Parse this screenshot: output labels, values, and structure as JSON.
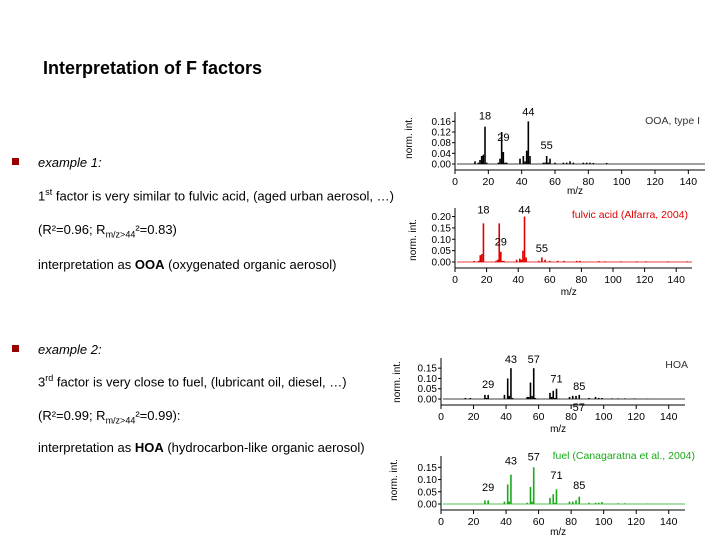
{
  "title": "Interpretation of F factors",
  "ex1": {
    "label": "example 1:",
    "line1_a": "1",
    "line1_sup": "st",
    "line1_b": " factor is very similar to fulvic acid, (aged urban aerosol, …)",
    "line2_a": "(R²=0.96; R",
    "line2_sub": "m/z>44",
    "line2_b": "²=0.83)",
    "line3_a": "interpretation as ",
    "line3_bold": "OOA",
    "line3_b": " (oxygenated organic aerosol)"
  },
  "ex2": {
    "label": "example 2:",
    "line1_a": "3",
    "line1_sup": "rd",
    "line1_b": " factor is very close to fuel, (lubricant oil, diesel, …)",
    "line2_a": "(R²=0.99; R",
    "line2_sub": "m/z>44",
    "line2_b": "²=0.99):",
    "line3_a": "interpretation as ",
    "line3_bold": "HOA",
    "line3_b": " (hydrocarbon-like organic aerosol)"
  },
  "chart_data": [
    {
      "type": "bar",
      "legend": "OOA, type I",
      "color": "#000000",
      "ylabel": "norm. int.",
      "xlabel": "m/z",
      "xlim": [
        0,
        150
      ],
      "ylim": [
        0,
        0.18
      ],
      "xticks": [
        0,
        20,
        40,
        60,
        80,
        100,
        120,
        140
      ],
      "yticks": [
        "0.00",
        "0.04",
        "0.08",
        "0.12",
        "0.16"
      ],
      "ytick_values": [
        0,
        0.04,
        0.08,
        0.12,
        0.16
      ],
      "peak_labels": [
        {
          "mz": 18,
          "text": "18",
          "y": 0.155
        },
        {
          "mz": 44,
          "text": "44",
          "y": 0.17
        },
        {
          "mz": 29,
          "text": "29",
          "y": 0.075
        },
        {
          "mz": 55,
          "text": "55",
          "y": 0.045
        }
      ],
      "points": [
        [
          12,
          0.01
        ],
        [
          14,
          0.005
        ],
        [
          15,
          0.015
        ],
        [
          16,
          0.03
        ],
        [
          17,
          0.035
        ],
        [
          18,
          0.14
        ],
        [
          19,
          0.005
        ],
        [
          26,
          0.005
        ],
        [
          27,
          0.02
        ],
        [
          28,
          0.12
        ],
        [
          29,
          0.045
        ],
        [
          30,
          0.005
        ],
        [
          31,
          0.005
        ],
        [
          39,
          0.02
        ],
        [
          41,
          0.03
        ],
        [
          42,
          0.01
        ],
        [
          43,
          0.05
        ],
        [
          44,
          0.16
        ],
        [
          45,
          0.03
        ],
        [
          53,
          0.005
        ],
        [
          54,
          0.005
        ],
        [
          55,
          0.03
        ],
        [
          56,
          0.005
        ],
        [
          57,
          0.02
        ],
        [
          60,
          0.005
        ],
        [
          65,
          0.005
        ],
        [
          67,
          0.005
        ],
        [
          69,
          0.01
        ],
        [
          71,
          0.005
        ],
        [
          77,
          0.005
        ],
        [
          79,
          0.005
        ],
        [
          81,
          0.005
        ],
        [
          83,
          0.004
        ],
        [
          91,
          0.004
        ]
      ]
    },
    {
      "type": "bar",
      "legend": "fulvic acid (Alfarra, 2004)",
      "color": "#e00000",
      "ylabel": "norm. int.",
      "xlabel": "m/z",
      "xlim": [
        0,
        150
      ],
      "ylim": [
        0,
        0.22
      ],
      "xticks": [
        0,
        20,
        40,
        60,
        80,
        100,
        120,
        140
      ],
      "yticks": [
        "0.00",
        "0.05",
        "0.10",
        "0.15",
        "0.20"
      ],
      "ytick_values": [
        0,
        0.05,
        0.1,
        0.15,
        0.2
      ],
      "peak_labels": [
        {
          "mz": 18,
          "text": "18",
          "y": 0.2
        },
        {
          "mz": 44,
          "text": "44",
          "y": 0.2
        },
        {
          "mz": 29,
          "text": "29",
          "y": 0.06
        },
        {
          "mz": 55,
          "text": "55",
          "y": 0.03
        }
      ],
      "points": [
        [
          12,
          0.005
        ],
        [
          15,
          0.005
        ],
        [
          16,
          0.03
        ],
        [
          17,
          0.035
        ],
        [
          18,
          0.17
        ],
        [
          26,
          0.005
        ],
        [
          27,
          0.01
        ],
        [
          28,
          0.17
        ],
        [
          29,
          0.045
        ],
        [
          30,
          0.005
        ],
        [
          31,
          0.005
        ],
        [
          39,
          0.01
        ],
        [
          41,
          0.015
        ],
        [
          42,
          0.01
        ],
        [
          43,
          0.05
        ],
        [
          44,
          0.2
        ],
        [
          45,
          0.02
        ],
        [
          53,
          0.005
        ],
        [
          55,
          0.02
        ],
        [
          57,
          0.01
        ],
        [
          60,
          0.005
        ],
        [
          65,
          0.005
        ],
        [
          69,
          0.005
        ],
        [
          77,
          0.005
        ],
        [
          79,
          0.005
        ],
        [
          91,
          0.004
        ],
        [
          95,
          0.003
        ],
        [
          105,
          0.003
        ],
        [
          115,
          0.003
        ],
        [
          121,
          0.003
        ],
        [
          135,
          0.003
        ],
        [
          147,
          0.003
        ]
      ]
    },
    {
      "type": "bar",
      "legend": "HOA",
      "color": "#000000",
      "ylabel": "norm. int.",
      "xlabel": "m/z",
      "xlim": [
        0,
        150
      ],
      "ylim": [
        0,
        0.18
      ],
      "xticks": [
        0,
        20,
        40,
        60,
        80,
        100,
        120,
        140
      ],
      "xtick_labels": [
        "0",
        "20",
        "40",
        "60",
        "80",
        "100",
        "120",
        "140"
      ],
      "yticks": [
        "0.00",
        "0.05",
        "0.10",
        "0.15"
      ],
      "ytick_values": [
        0,
        0.05,
        0.1,
        0.15
      ],
      "peak_labels": [
        {
          "mz": 43,
          "text": "43",
          "y": 0.16
        },
        {
          "mz": 57,
          "text": "57",
          "y": 0.16
        },
        {
          "mz": 29,
          "text": "29",
          "y": 0.04
        },
        {
          "mz": 71,
          "text": "71",
          "y": 0.065
        },
        {
          "mz": 85,
          "text": "85",
          "y": 0.03
        },
        {
          "mz": 57,
          "text": "57",
          "y": -0.005,
          "offset": 45
        }
      ],
      "points": [
        [
          15,
          0.005
        ],
        [
          18,
          0.005
        ],
        [
          27,
          0.02
        ],
        [
          28,
          0.005
        ],
        [
          29,
          0.02
        ],
        [
          39,
          0.02
        ],
        [
          41,
          0.1
        ],
        [
          42,
          0.015
        ],
        [
          43,
          0.15
        ],
        [
          44,
          0.005
        ],
        [
          53,
          0.01
        ],
        [
          54,
          0.01
        ],
        [
          55,
          0.08
        ],
        [
          56,
          0.015
        ],
        [
          57,
          0.15
        ],
        [
          58,
          0.005
        ],
        [
          67,
          0.03
        ],
        [
          68,
          0.01
        ],
        [
          69,
          0.04
        ],
        [
          70,
          0.005
        ],
        [
          71,
          0.05
        ],
        [
          79,
          0.01
        ],
        [
          81,
          0.015
        ],
        [
          83,
          0.015
        ],
        [
          85,
          0.02
        ],
        [
          91,
          0.005
        ],
        [
          95,
          0.01
        ],
        [
          97,
          0.005
        ],
        [
          99,
          0.005
        ],
        [
          105,
          0.003
        ],
        [
          109,
          0.003
        ],
        [
          113,
          0.003
        ],
        [
          119,
          0.003
        ],
        [
          127,
          0.002
        ]
      ]
    },
    {
      "type": "bar",
      "legend": "fuel (Canagaratna et al., 2004)",
      "color": "#1aaa1a",
      "ylabel": "norm. int.",
      "xlabel": "m/z",
      "xlim": [
        0,
        150
      ],
      "ylim": [
        0,
        0.18
      ],
      "xticks": [
        0,
        20,
        40,
        60,
        80,
        100,
        120,
        140
      ],
      "yticks": [
        "0.00",
        "0.05",
        "0.10",
        "0.15"
      ],
      "ytick_values": [
        0,
        0.05,
        0.1,
        0.15
      ],
      "peak_labels": [
        {
          "mz": 43,
          "text": "43",
          "y": 0.15
        },
        {
          "mz": 57,
          "text": "57",
          "y": 0.165
        },
        {
          "mz": 29,
          "text": "29",
          "y": 0.04
        },
        {
          "mz": 71,
          "text": "71",
          "y": 0.09
        },
        {
          "mz": 85,
          "text": "85",
          "y": 0.05
        }
      ],
      "points": [
        [
          27,
          0.015
        ],
        [
          29,
          0.015
        ],
        [
          39,
          0.01
        ],
        [
          41,
          0.08
        ],
        [
          42,
          0.01
        ],
        [
          43,
          0.12
        ],
        [
          53,
          0.005
        ],
        [
          55,
          0.07
        ],
        [
          56,
          0.01
        ],
        [
          57,
          0.15
        ],
        [
          67,
          0.025
        ],
        [
          69,
          0.04
        ],
        [
          70,
          0.005
        ],
        [
          71,
          0.06
        ],
        [
          79,
          0.01
        ],
        [
          81,
          0.01
        ],
        [
          83,
          0.015
        ],
        [
          85,
          0.03
        ],
        [
          91,
          0.005
        ],
        [
          95,
          0.005
        ],
        [
          97,
          0.005
        ],
        [
          99,
          0.008
        ],
        [
          109,
          0.003
        ],
        [
          113,
          0.003
        ],
        [
          127,
          0.002
        ]
      ]
    }
  ]
}
